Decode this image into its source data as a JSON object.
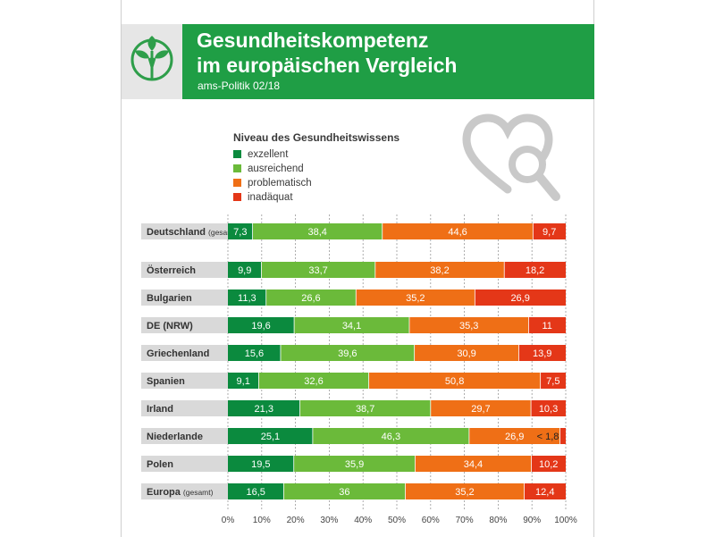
{
  "header": {
    "title_line1": "Gesundheitskompetenz",
    "title_line2": "im europäischen Vergleich",
    "subtitle": "ams-Politik 02/18"
  },
  "icons": {
    "logo": "tree-logo-icon",
    "decoration": "heart-magnifier-icon"
  },
  "colors": {
    "brand_green": "#1f9e45",
    "exzellent": "#0b8a3e",
    "ausreichend": "#6bba3a",
    "problematisch": "#ef6f16",
    "inadaequat": "#e43718",
    "row_label_bg": "#d9d9d9"
  },
  "chart_data": {
    "type": "bar",
    "orientation": "horizontal",
    "stacked": true,
    "legend_title": "Niveau des Gesundheitswissens",
    "categories": [
      {
        "name": "Deutschland",
        "suffix": "(gesamt)"
      },
      {
        "name": "Österreich",
        "suffix": ""
      },
      {
        "name": "Bulgarien",
        "suffix": ""
      },
      {
        "name": "DE (NRW)",
        "suffix": ""
      },
      {
        "name": "Griechenland",
        "suffix": ""
      },
      {
        "name": "Spanien",
        "suffix": ""
      },
      {
        "name": "Irland",
        "suffix": ""
      },
      {
        "name": "Niederlande",
        "suffix": ""
      },
      {
        "name": "Polen",
        "suffix": ""
      },
      {
        "name": "Europa",
        "suffix": "(gesamt)"
      }
    ],
    "series": [
      {
        "name": "exzellent",
        "color": "#0b8a3e",
        "values": [
          7.3,
          9.9,
          11.3,
          19.6,
          15.6,
          9.1,
          21.3,
          25.1,
          19.5,
          16.5
        ],
        "labels": [
          "7,3",
          "9,9",
          "11,3",
          "19,6",
          "15,6",
          "9,1",
          "21,3",
          "25,1",
          "19,5",
          "16,5"
        ]
      },
      {
        "name": "ausreichend",
        "color": "#6bba3a",
        "values": [
          38.4,
          33.7,
          26.6,
          34.1,
          39.6,
          32.6,
          38.7,
          46.3,
          35.9,
          36
        ],
        "labels": [
          "38,4",
          "33,7",
          "26,6",
          "34,1",
          "39,6",
          "32,6",
          "38,7",
          "46,3",
          "35,9",
          "36"
        ]
      },
      {
        "name": "problematisch",
        "color": "#ef6f16",
        "values": [
          44.6,
          38.2,
          35.2,
          35.3,
          30.9,
          50.8,
          29.7,
          26.9,
          34.4,
          35.2
        ],
        "labels": [
          "44,6",
          "38,2",
          "35,2",
          "35,3",
          "30,9",
          "50,8",
          "29,7",
          "26,9",
          "34,4",
          "35,2"
        ]
      },
      {
        "name": "inadäquat",
        "color": "#e43718",
        "values": [
          9.7,
          18.2,
          26.9,
          11,
          13.9,
          7.5,
          10.3,
          1.8,
          10.2,
          12.4
        ],
        "labels": [
          "9,7",
          "18,2",
          "26,9",
          "11",
          "13,9",
          "7,5",
          "10,3",
          "< 1,8",
          "10,2",
          "12,4"
        ]
      }
    ],
    "x_ticks": [
      "0%",
      "10%",
      "20%",
      "30%",
      "40%",
      "50%",
      "60%",
      "70%",
      "80%",
      "90%",
      "100%"
    ],
    "xlim": [
      0,
      100
    ],
    "grid": true,
    "legend_position": "top-left"
  }
}
